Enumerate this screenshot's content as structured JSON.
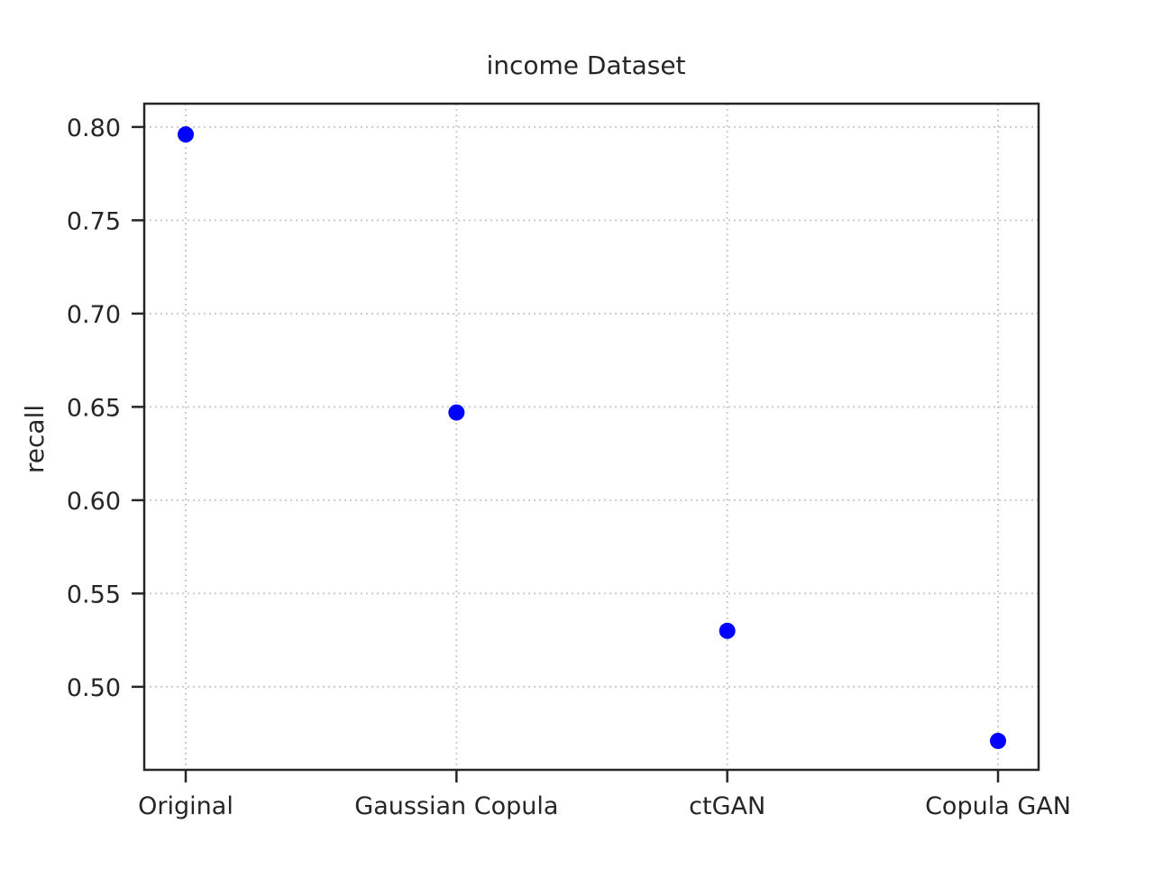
{
  "chart_data": {
    "type": "scatter",
    "title": "income Dataset",
    "xlabel": "",
    "ylabel": "recall",
    "categories": [
      "Original",
      "Gaussian Copula",
      "ctGAN",
      "Copula GAN"
    ],
    "values": [
      0.796,
      0.647,
      0.53,
      0.471
    ],
    "yticks": [
      "0.50",
      "0.55",
      "0.60",
      "0.65",
      "0.70",
      "0.75",
      "0.80"
    ],
    "ylim": [
      0.4555,
      0.8125
    ],
    "grid": true,
    "legend": "none",
    "colors": {
      "points": "#0000ff",
      "grid": "#cccccc",
      "axes": "#262626"
    }
  }
}
